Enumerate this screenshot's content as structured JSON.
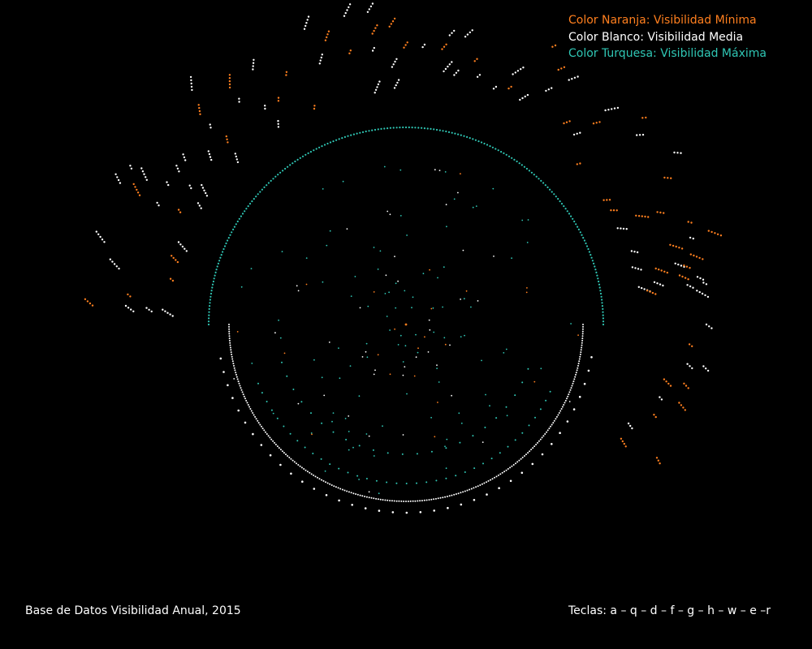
{
  "legend": {
    "min": {
      "label": "Color Naranja: Visibilidad Mínima",
      "color": "#ff7f1e"
    },
    "mid": {
      "label": "Color Blanco: Visibilidad Media",
      "color": "#ffffff"
    },
    "max": {
      "label": "Color Turquesa: Visibilidad Máxima",
      "color": "#2fc6b4"
    }
  },
  "footer": {
    "source": "Base de Datos Visibilidad Anual, 2015",
    "keys": "Teclas: a – q – d – f – g – h – w – e –r"
  },
  "chart_data": {
    "type": "scatter",
    "layout": "polar",
    "series": [
      {
        "name": "Color Naranja: Visibilidad Mínima",
        "color": "#ff7f1e"
      },
      {
        "name": "Color Blanco: Visibilidad Media",
        "color": "#ffffff"
      },
      {
        "name": "Color Turquesa: Visibilidad Máxima",
        "color": "#2fc6b4"
      }
    ],
    "grid": false
  }
}
